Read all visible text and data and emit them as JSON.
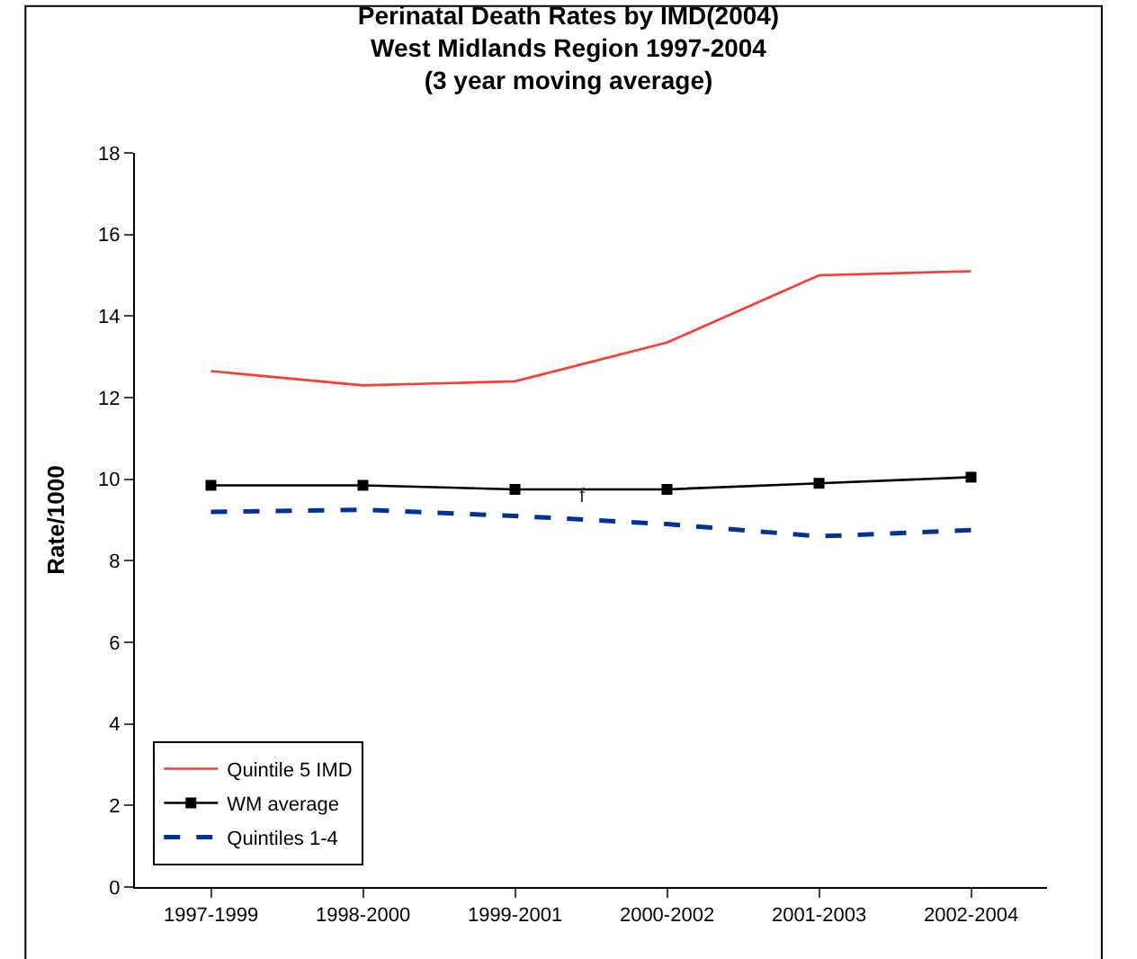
{
  "chart_data": {
    "type": "line",
    "title": "Perinatal Death Rates by IMD(2004)\nWest Midlands Region 1997-2004\n(3 year moving average)",
    "ylabel": "Rate/1000",
    "categories": [
      "1997-1999",
      "1998-2000",
      "1999-2001",
      "2000-2002",
      "2001-2003",
      "2002-2004"
    ],
    "series": [
      {
        "name": "Quintile 5 IMD",
        "color": "#ff3b30",
        "values": [
          12.65,
          12.3,
          12.4,
          13.35,
          15.0,
          15.1
        ],
        "marker": "none",
        "line_style": "solid"
      },
      {
        "name": "WM average",
        "color": "#000000",
        "values": [
          9.85,
          9.85,
          9.75,
          9.75,
          9.9,
          10.05
        ],
        "marker": "square",
        "line_style": "solid"
      },
      {
        "name": "Quintiles 1-4",
        "color": "#003399",
        "values": [
          9.2,
          9.25,
          9.1,
          8.9,
          8.6,
          8.75
        ],
        "marker": "none",
        "line_style": "dashed"
      }
    ],
    "annotations": [
      "f"
    ],
    "ylim": [
      0,
      18
    ],
    "yticks": [
      0,
      2,
      4,
      6,
      8,
      10,
      12,
      14,
      16,
      18
    ],
    "grid": false,
    "legend": "bottom left"
  }
}
